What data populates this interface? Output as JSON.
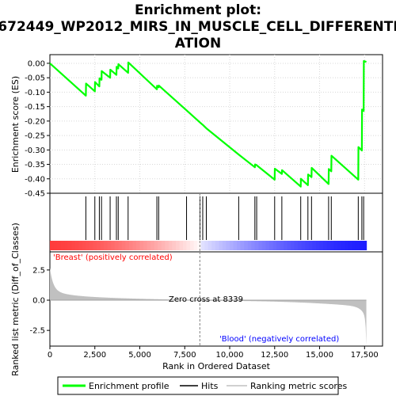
{
  "title_line1": "Enrichment plot:",
  "title_line2": "672449_WP2012_MIRS_IN_MUSCLE_CELL_DIFFERENTI",
  "title_line3": "ATION",
  "colors": {
    "curve": "#00ff00",
    "hit": "#000000",
    "pos_band": "#ff0000",
    "neg_band": "#0000ff",
    "metric_fill": "#c0c0c0",
    "label_pos": "#ff0000",
    "label_neg": "#0000ff",
    "zero_cross_line": "#808080"
  },
  "chart_data": {
    "type": "line",
    "xlabel": "Rank in Ordered Dataset",
    "ylabel_top": "Enrichment score (ES)",
    "ylabel_bottom": "Ranked list metric (Diff_of_Classes)",
    "x_range": [
      0,
      18500
    ],
    "x_ticks": [
      0,
      2500,
      5000,
      7500,
      10000,
      12500,
      15000,
      17500
    ],
    "x_tick_labels": [
      "0",
      "2,500",
      "5,000",
      "7,500",
      "10,000",
      "12,500",
      "15,000",
      "17,500"
    ],
    "es_range": [
      -0.45,
      0.03
    ],
    "es_ticks": [
      0.0,
      -0.05,
      -0.1,
      -0.15,
      -0.2,
      -0.25,
      -0.3,
      -0.35,
      -0.4,
      -0.45
    ],
    "es_tick_labels": [
      "0.00",
      "-0.05",
      "-0.10",
      "-0.15",
      "-0.20",
      "-0.25",
      "-0.30",
      "-0.35",
      "-0.40",
      "-0.45"
    ],
    "metric_range": [
      -3.8,
      4.0
    ],
    "metric_ticks": [
      2.5,
      0.0,
      -2.5
    ],
    "metric_tick_labels": [
      "2.5",
      "0.0",
      "-2.5"
    ],
    "total_genes": 17600,
    "zero_cross": 8339,
    "zero_cross_label": "Zero cross at 8339",
    "pos_label": "'Breast' (positively correlated)",
    "neg_label": "'Blood' (negatively correlated)",
    "hits": [
      2000,
      2500,
      2750,
      2870,
      3350,
      3700,
      3800,
      4350,
      5950,
      6050,
      7600,
      8350,
      8500,
      8700,
      10500,
      11400,
      11500,
      12500,
      12900,
      13950,
      14350,
      14550,
      15500,
      15650,
      17150,
      17350,
      17450
    ],
    "es_points": [
      [
        0,
        0.0
      ],
      [
        2000,
        -0.112
      ],
      [
        2010,
        -0.07
      ],
      [
        2500,
        -0.097
      ],
      [
        2510,
        -0.065
      ],
      [
        2750,
        -0.08
      ],
      [
        2760,
        -0.052
      ],
      [
        2870,
        -0.057
      ],
      [
        2880,
        -0.027
      ],
      [
        3350,
        -0.05
      ],
      [
        3360,
        -0.022
      ],
      [
        3700,
        -0.04
      ],
      [
        3710,
        -0.012
      ],
      [
        3800,
        -0.018
      ],
      [
        3810,
        -0.003
      ],
      [
        4350,
        -0.033
      ],
      [
        4360,
        0.003
      ],
      [
        5950,
        -0.09
      ],
      [
        5960,
        -0.078
      ],
      [
        6050,
        -0.083
      ],
      [
        6060,
        -0.077
      ],
      [
        7600,
        -0.163
      ],
      [
        8350,
        -0.205
      ],
      [
        8500,
        -0.213
      ],
      [
        8700,
        -0.225
      ],
      [
        10500,
        -0.316
      ],
      [
        11400,
        -0.36
      ],
      [
        11410,
        -0.35
      ],
      [
        11500,
        -0.353
      ],
      [
        12500,
        -0.403
      ],
      [
        12510,
        -0.365
      ],
      [
        12900,
        -0.383
      ],
      [
        12910,
        -0.37
      ],
      [
        13950,
        -0.427
      ],
      [
        13960,
        -0.4
      ],
      [
        14350,
        -0.422
      ],
      [
        14360,
        -0.385
      ],
      [
        14550,
        -0.394
      ],
      [
        14560,
        -0.362
      ],
      [
        15500,
        -0.418
      ],
      [
        15510,
        -0.366
      ],
      [
        15650,
        -0.374
      ],
      [
        15660,
        -0.32
      ],
      [
        17150,
        -0.403
      ],
      [
        17160,
        -0.29
      ],
      [
        17350,
        -0.302
      ],
      [
        17360,
        -0.16
      ],
      [
        17450,
        -0.165
      ],
      [
        17460,
        0.008
      ],
      [
        17600,
        0.005
      ]
    ],
    "legend": [
      "Enrichment profile",
      "Hits",
      "Ranking metric scores"
    ]
  }
}
